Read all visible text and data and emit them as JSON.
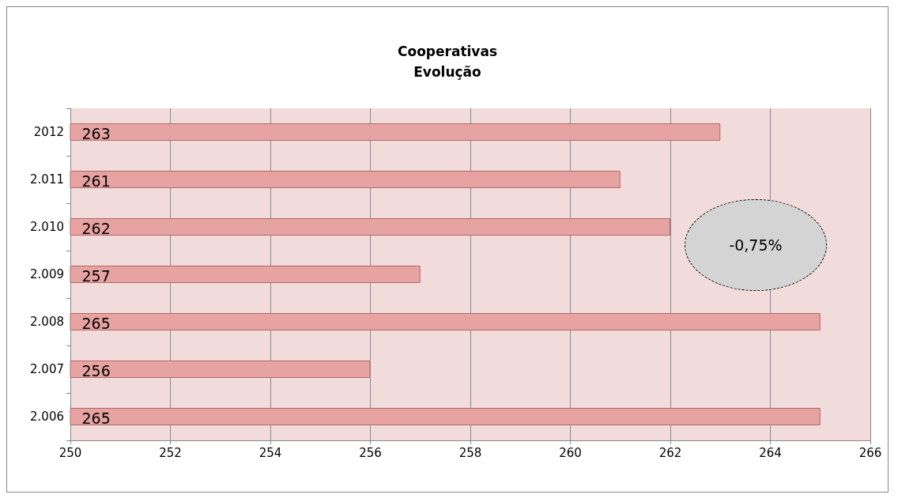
{
  "chart_data": {
    "type": "bar",
    "orientation": "horizontal",
    "title": "Cooperativas\nEvolução",
    "categories": [
      "2012",
      "2.011",
      "2.010",
      "2.009",
      "2.008",
      "2.007",
      "2.006"
    ],
    "values": [
      263,
      261,
      262,
      257,
      265,
      256,
      265
    ],
    "color": "#e6a3a1",
    "xlim": [
      250,
      266
    ],
    "xticks": [
      250,
      252,
      254,
      256,
      258,
      260,
      262,
      264,
      266
    ],
    "grid": "x",
    "data_labels": true,
    "annotations": [
      "-0,75%"
    ]
  }
}
